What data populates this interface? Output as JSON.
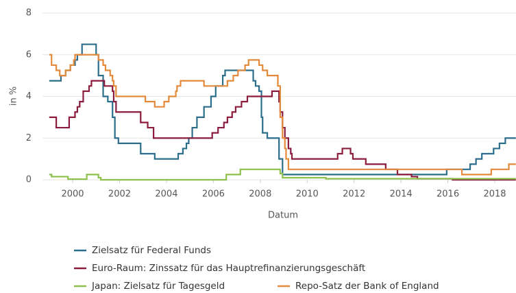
{
  "chart_data": {
    "type": "line",
    "step": true,
    "grid": true,
    "x_label": "Datum",
    "y_label": "in %",
    "xlim": [
      1998.9,
      2018.9
    ],
    "ylim": [
      0,
      8
    ],
    "xticks": [
      2000,
      2002,
      2004,
      2006,
      2008,
      2010,
      2012,
      2014,
      2016,
      2018
    ],
    "yticks": [
      0,
      2,
      4,
      6,
      8
    ],
    "series": [
      {
        "name": "Zielsatz für Federal Funds",
        "color": "#2c6d8c",
        "x": [
          1999.0,
          1999.5,
          1999.7,
          1999.9,
          2000.1,
          2000.2,
          2000.4,
          2001.0,
          2001.1,
          2001.3,
          2001.5,
          2001.7,
          2001.8,
          2001.95,
          2002.9,
          2003.5,
          2004.5,
          2004.7,
          2004.85,
          2004.95,
          2005.1,
          2005.3,
          2005.6,
          2005.9,
          2006.1,
          2006.4,
          2006.5,
          2007.7,
          2007.8,
          2007.95,
          2008.05,
          2008.1,
          2008.3,
          2008.8,
          2008.95,
          2015.95,
          2016.95,
          2017.2,
          2017.45,
          2017.95,
          2018.2,
          2018.45
        ],
        "values": [
          4.75,
          5.0,
          5.25,
          5.5,
          5.75,
          6.0,
          6.5,
          6.0,
          5.0,
          4.0,
          3.75,
          3.0,
          2.0,
          1.75,
          1.25,
          1.0,
          1.25,
          1.5,
          1.75,
          2.0,
          2.5,
          3.0,
          3.5,
          4.0,
          4.5,
          5.0,
          5.25,
          4.75,
          4.5,
          4.25,
          3.0,
          2.25,
          2.0,
          1.0,
          0.25,
          0.5,
          0.75,
          1.0,
          1.25,
          1.5,
          1.75,
          2.0
        ]
      },
      {
        "name": "Euro-Raum: Zinssatz für das Hauptrefinanzierungsgeschäft",
        "color": "#8b1c3c",
        "x": [
          1999.0,
          1999.3,
          1999.85,
          2000.1,
          2000.2,
          2000.3,
          2000.45,
          2000.7,
          2000.8,
          2001.35,
          2001.7,
          2001.75,
          2001.85,
          2002.9,
          2003.2,
          2003.45,
          2005.95,
          2006.2,
          2006.45,
          2006.6,
          2006.8,
          2006.95,
          2007.2,
          2007.45,
          2008.5,
          2008.8,
          2008.85,
          2008.95,
          2009.05,
          2009.2,
          2009.3,
          2009.35,
          2011.3,
          2011.5,
          2011.85,
          2011.95,
          2012.5,
          2013.35,
          2013.85,
          2014.45,
          2014.7,
          2016.2
        ],
        "values": [
          3.0,
          2.5,
          3.0,
          3.25,
          3.5,
          3.75,
          4.25,
          4.5,
          4.75,
          4.5,
          4.25,
          3.75,
          3.25,
          2.75,
          2.5,
          2.0,
          2.25,
          2.5,
          2.75,
          3.0,
          3.25,
          3.5,
          3.75,
          4.0,
          4.25,
          3.75,
          3.25,
          2.5,
          2.0,
          1.5,
          1.25,
          1.0,
          1.25,
          1.5,
          1.25,
          1.0,
          0.75,
          0.5,
          0.25,
          0.15,
          0.05,
          0.0
        ]
      },
      {
        "name": "Japan: Zielsatz für Tagesgeld",
        "color": "#8dc04b",
        "x": [
          1999.0,
          1999.1,
          1999.8,
          2000.6,
          2001.1,
          2001.2,
          2006.55,
          2007.15,
          2008.85,
          2008.95,
          2010.8
        ],
        "values": [
          0.25,
          0.15,
          0.03,
          0.25,
          0.1,
          0.0,
          0.25,
          0.5,
          0.3,
          0.1,
          0.05
        ]
      },
      {
        "name": "Repo-Satz der Bank of England",
        "color": "#e48a3a",
        "x": [
          1999.0,
          1999.1,
          1999.3,
          1999.45,
          1999.7,
          1999.9,
          2000.05,
          2000.1,
          2001.1,
          2001.3,
          2001.4,
          2001.6,
          2001.7,
          2001.75,
          2001.85,
          2003.1,
          2003.5,
          2003.9,
          2004.1,
          2004.4,
          2004.45,
          2004.6,
          2005.6,
          2006.6,
          2006.85,
          2007.05,
          2007.35,
          2007.5,
          2007.95,
          2008.1,
          2008.3,
          2008.75,
          2008.85,
          2008.95,
          2009.05,
          2009.1,
          2009.2,
          2016.6,
          2017.85,
          2018.6
        ],
        "values": [
          6.0,
          5.5,
          5.25,
          5.0,
          5.25,
          5.5,
          5.75,
          6.0,
          5.75,
          5.5,
          5.25,
          5.0,
          4.75,
          4.5,
          4.0,
          3.75,
          3.5,
          3.75,
          4.0,
          4.25,
          4.5,
          4.75,
          4.5,
          4.75,
          5.0,
          5.25,
          5.5,
          5.75,
          5.5,
          5.25,
          5.0,
          4.5,
          3.0,
          2.0,
          1.5,
          1.0,
          0.5,
          0.25,
          0.5,
          0.75
        ]
      }
    ]
  }
}
